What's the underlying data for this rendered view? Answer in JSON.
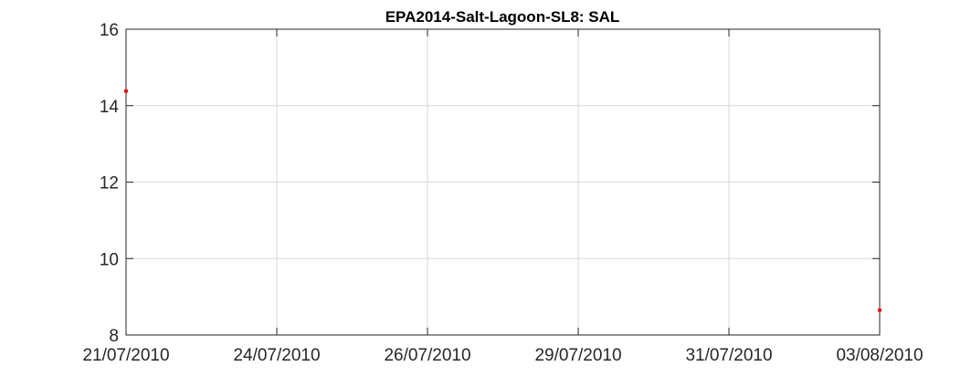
{
  "chart_data": {
    "type": "scatter",
    "title": "EPA2014-Salt-Lagoon-SL8: SAL",
    "xlabel": "",
    "ylabel": "",
    "x_ticks": [
      "21/07/2010",
      "24/07/2010",
      "26/07/2010",
      "29/07/2010",
      "31/07/2010",
      "03/08/2010"
    ],
    "x_tick_positions": [
      0,
      2.5,
      5,
      7.5,
      10,
      12.5
    ],
    "xlim": [
      0,
      12.5
    ],
    "y_ticks": [
      8,
      10,
      12,
      14,
      16
    ],
    "ylim": [
      8,
      16
    ],
    "grid": true,
    "legend": "none",
    "series": [
      {
        "color": "#ff0000",
        "points": [
          {
            "x": 0,
            "y": 14.38
          },
          {
            "x": 12.5,
            "y": 8.65
          }
        ]
      }
    ]
  }
}
